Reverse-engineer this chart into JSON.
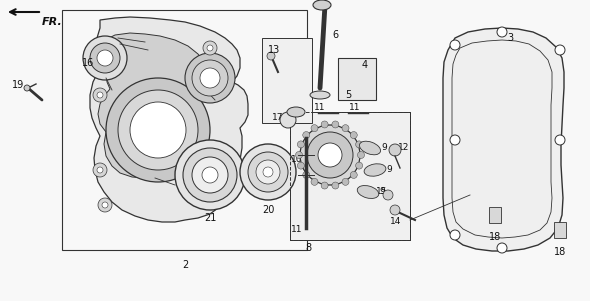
{
  "bg_color": "#f5f5f5",
  "fig_width": 5.9,
  "fig_height": 3.01,
  "dpi": 100,
  "line_color": "#333333",
  "light_gray": "#cccccc",
  "mid_gray": "#888888",
  "dark": "#111111"
}
